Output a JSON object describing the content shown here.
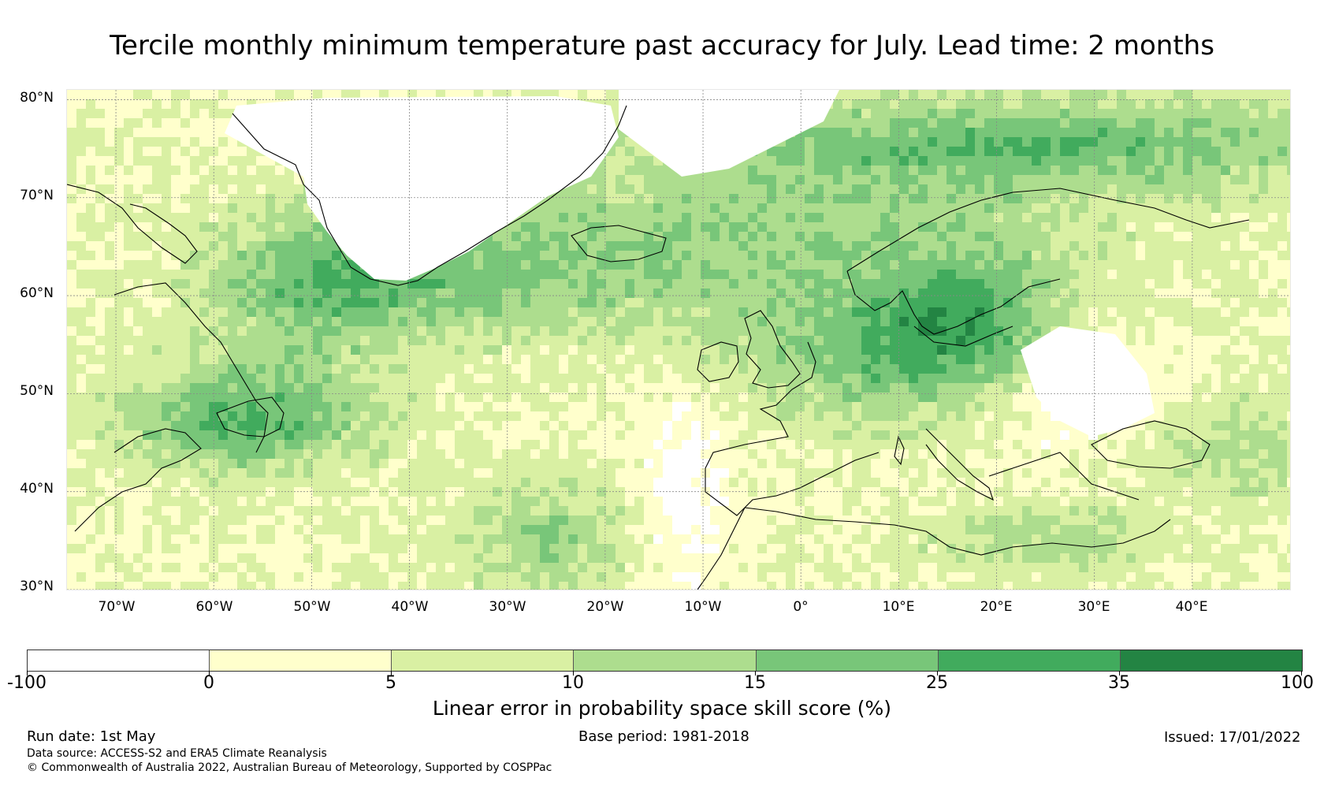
{
  "title": "Tercile monthly minimum temperature past accuracy for July. Lead time: 2 months",
  "map": {
    "lat_labels": [
      "80°N",
      "70°N",
      "60°N",
      "50°N",
      "40°N",
      "30°N"
    ],
    "lon_labels": [
      "70°W",
      "60°W",
      "50°W",
      "40°W",
      "30°W",
      "20°W",
      "10°W",
      "0°",
      "10°E",
      "20°E",
      "30°E",
      "40°E"
    ],
    "lat_range": [
      30,
      81
    ],
    "lon_range": [
      -75,
      50
    ],
    "colors": {
      "white": "#ffffff",
      "yellow": "#ffffcc",
      "lightgreen": "#d9f0a3",
      "green1": "#addd8e",
      "green2": "#78c679",
      "green3": "#41ab5d",
      "darkgreen": "#238443",
      "coast": "#000000",
      "grid": "#888888"
    }
  },
  "colorbar": {
    "labels": [
      "-100",
      "0",
      "5",
      "10",
      "15",
      "25",
      "35",
      "100"
    ],
    "colors": [
      "#ffffff",
      "#ffffcc",
      "#d9f0a3",
      "#addd8e",
      "#78c679",
      "#41ab5d",
      "#238443"
    ],
    "title": "Linear error in probability space skill score (%)"
  },
  "footer": {
    "run_date": "Run date: 1st May",
    "base_period": "Base period: 1981-2018",
    "issued": "Issued: 17/01/2022",
    "data_source": "Data source: ACCESS-S2 and ERA5 Climate Reanalysis",
    "copyright": "© Commonwealth of Australia 2022, Australian Bureau of Meteorology, Supported by COSPPac"
  }
}
